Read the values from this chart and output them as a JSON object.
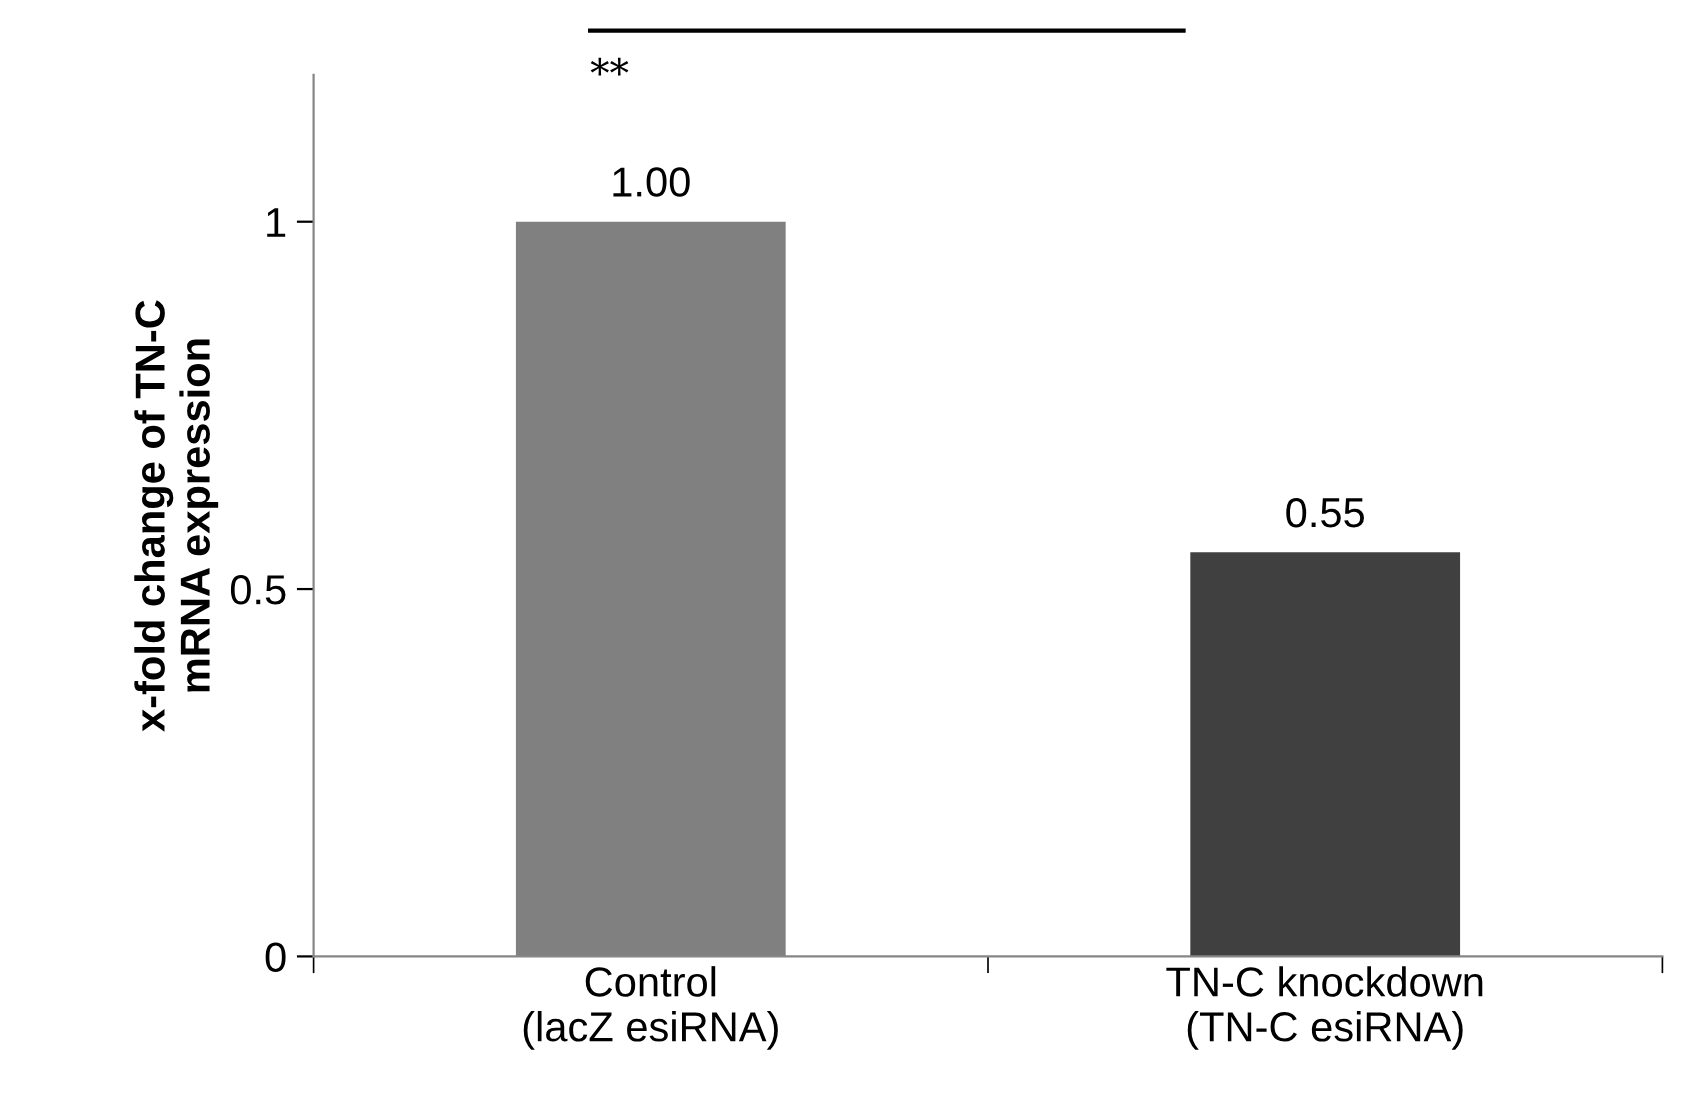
{
  "chart_data": {
    "type": "bar",
    "ylabel": "x-fold change of TN-C\nmRNA expression",
    "categories": [
      "Control\n(lacZ esiRNA)",
      "TN-C knockdown\n(TN-C esiRNA)"
    ],
    "values": [
      1.0,
      0.55
    ],
    "colors": [
      "#808080",
      "#404040"
    ],
    "value_labels": [
      "1.00",
      "0.55"
    ],
    "ylim": [
      0,
      1.2
    ],
    "yticks": [
      0,
      0.5,
      1
    ],
    "annotations": [
      "**"
    ],
    "grid": false,
    "legend": false
  }
}
